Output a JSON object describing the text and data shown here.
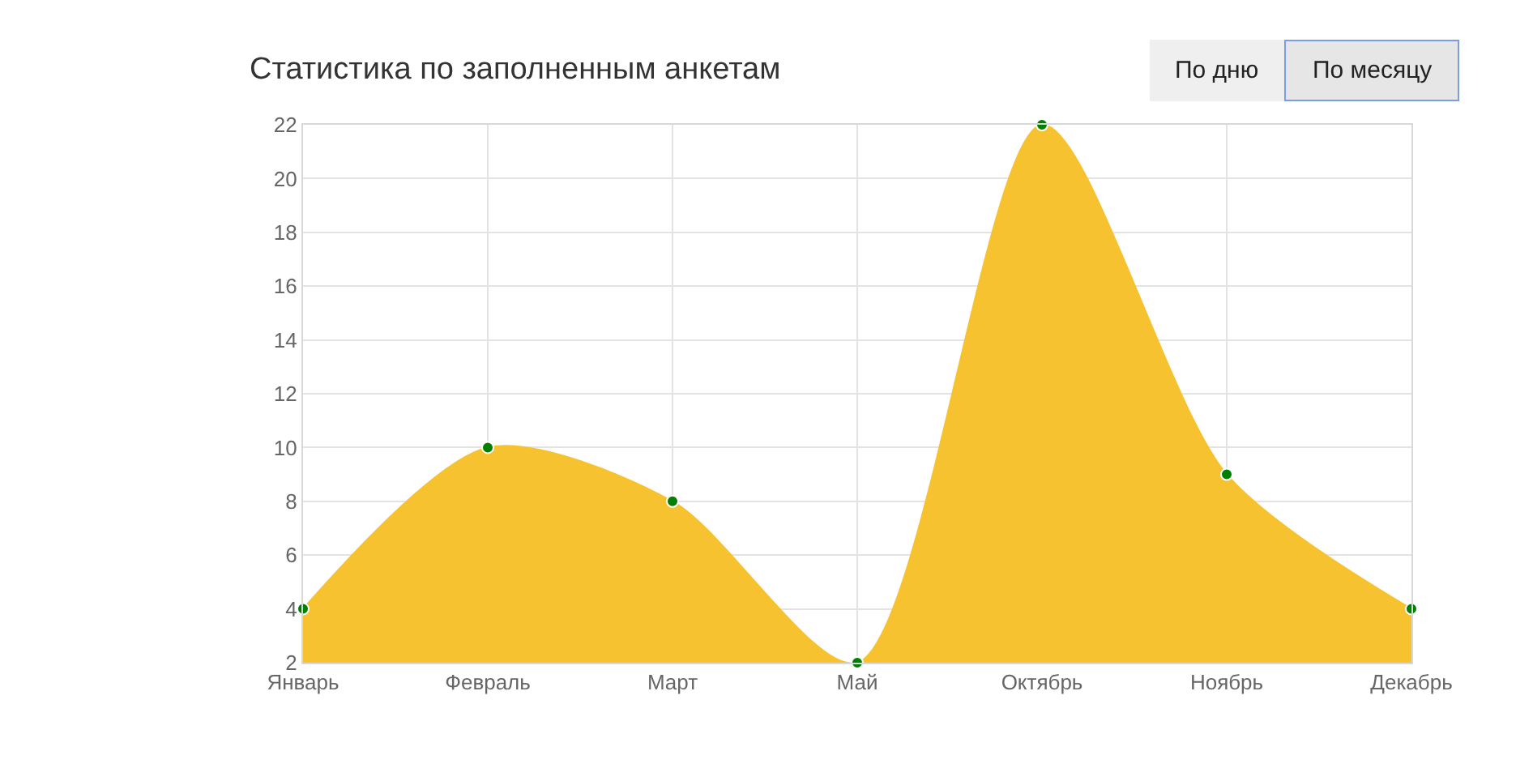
{
  "chart_data": {
    "type": "area",
    "title": "Статистика по заполненным анкетам",
    "categories": [
      "Январь",
      "Февраль",
      "Март",
      "Май",
      "Октябрь",
      "Ноябрь",
      "Декабрь"
    ],
    "series": [
      {
        "color": "#f7c22f",
        "values": [
          4,
          10,
          8,
          2,
          22,
          9,
          4
        ]
      }
    ],
    "ylim": [
      2,
      22
    ],
    "yticks": [
      2,
      4,
      6,
      8,
      10,
      12,
      14,
      16,
      18,
      20,
      22
    ],
    "grid": true,
    "marker": "circle",
    "legend": false,
    "annotations": [
      "По дню",
      "По месяцу"
    ]
  }
}
